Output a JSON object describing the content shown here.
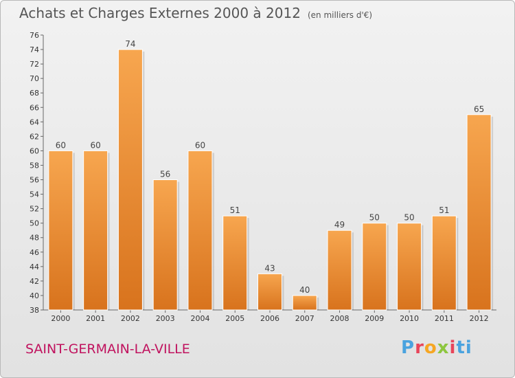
{
  "header": {
    "title": "Achats et Charges Externes 2000 à 2012",
    "unit": "(en milliers d'€)"
  },
  "commune": "SAINT-GERMAIN-LA-VILLE",
  "logo": {
    "text": "Proxiti"
  },
  "colors": {
    "bar_top": "#f7a64f",
    "bar_bottom": "#d8731d",
    "commune": "#c0125e"
  },
  "chart_data": {
    "type": "bar",
    "title": "Achats et Charges Externes 2000 à 2012",
    "subtitle": "(en milliers d'€)",
    "categories": [
      "2000",
      "2001",
      "2002",
      "2003",
      "2004",
      "2005",
      "2006",
      "2007",
      "2008",
      "2009",
      "2010",
      "2011",
      "2012"
    ],
    "values": [
      60,
      60,
      74,
      56,
      60,
      51,
      43,
      40,
      49,
      50,
      50,
      51,
      65
    ],
    "ylim": [
      38,
      76
    ],
    "yticks": [
      38,
      40,
      42,
      44,
      46,
      48,
      50,
      52,
      54,
      56,
      58,
      60,
      62,
      64,
      66,
      68,
      70,
      72,
      74,
      76
    ],
    "grid": false
  }
}
